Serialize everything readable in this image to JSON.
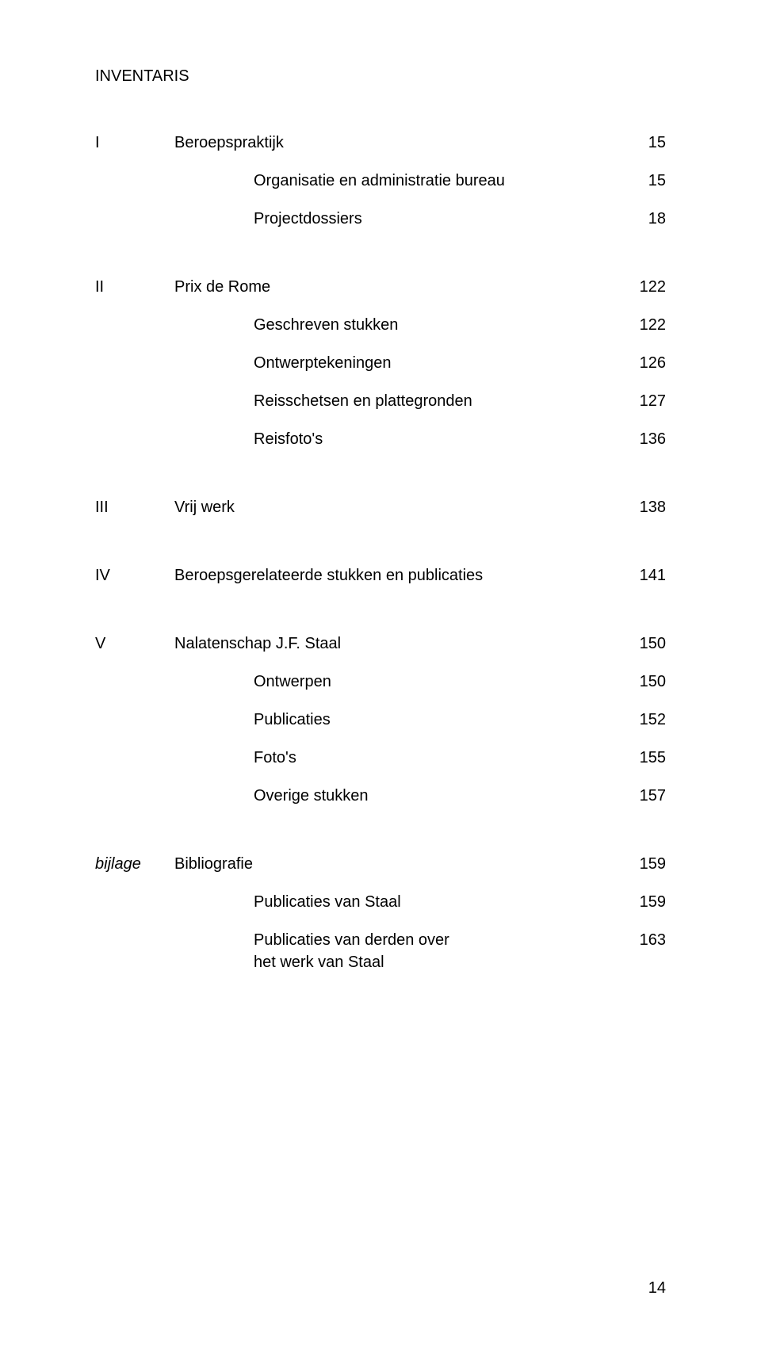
{
  "title": "INVENTARIS",
  "sections": [
    {
      "roman": "I",
      "label": "Beroepspraktijk",
      "page": "15",
      "sub": [
        {
          "label": "Organisatie en administratie bureau",
          "page": "15"
        },
        {
          "label": "Projectdossiers",
          "page": "18"
        }
      ]
    },
    {
      "roman": "II",
      "label": "Prix de Rome",
      "page": "122",
      "sub": [
        {
          "label": "Geschreven stukken",
          "page": "122"
        },
        {
          "label": "Ontwerptekeningen",
          "page": "126"
        },
        {
          "label": "Reisschetsen en plattegronden",
          "page": "127"
        },
        {
          "label": "Reisfoto's",
          "page": "136"
        }
      ]
    },
    {
      "roman": "III",
      "label": "Vrij werk",
      "page": "138",
      "sub": []
    },
    {
      "roman": "IV",
      "label": "Beroepsgerelateerde stukken en publicaties",
      "page": "141",
      "sub": []
    },
    {
      "roman": "V",
      "label": "Nalatenschap J.F. Staal",
      "page": "150",
      "sub": [
        {
          "label": "Ontwerpen",
          "page": "150"
        },
        {
          "label": "Publicaties",
          "page": "152"
        },
        {
          "label": "Foto's",
          "page": "155"
        },
        {
          "label": "Overige stukken",
          "page": "157"
        }
      ]
    },
    {
      "roman": "bijlage",
      "italic": true,
      "label": "Bibliografie",
      "page": "159",
      "sub": [
        {
          "label": "Publicaties van Staal",
          "page": "159"
        },
        {
          "label": "Publicaties van derden over",
          "label2": "het werk van Staal",
          "page": "163"
        }
      ]
    }
  ],
  "page_number": "14"
}
